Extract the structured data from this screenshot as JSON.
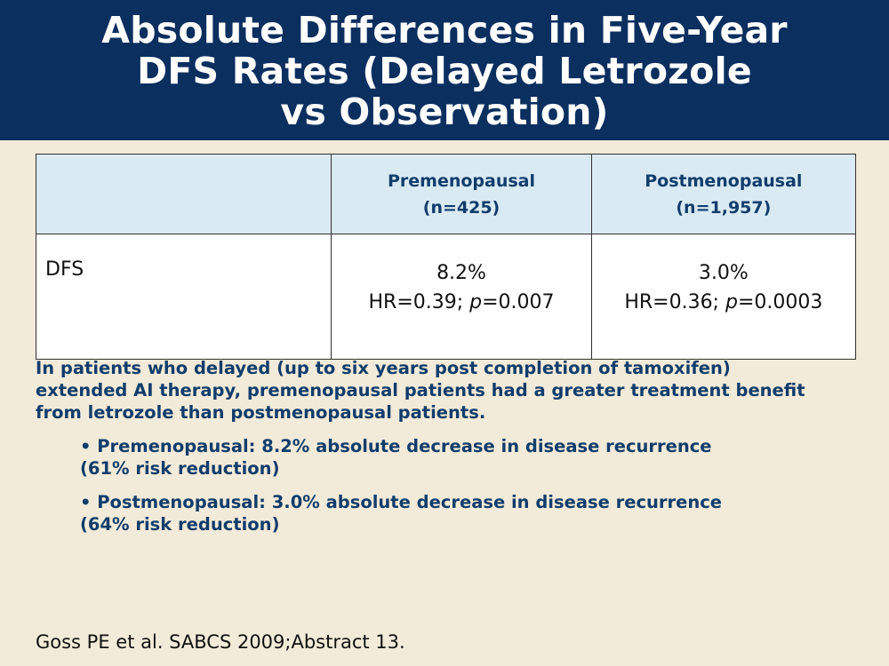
{
  "colors": {
    "header_background": "#0b2f5f",
    "slide_background": "#f3ebd9",
    "table_header_background": "#d9eaf3",
    "accent_text": "#123d6c",
    "body_text": "#111111"
  },
  "title": {
    "line1": "Absolute Differences in Five-Year",
    "line2": "DFS Rates (Delayed Letrozole",
    "line3": "vs Observation)"
  },
  "table": {
    "headers": [
      "",
      {
        "line1": "Premenopausal",
        "line2": "(n=425)"
      },
      {
        "line1": "Postmenopausal",
        "line2": "(n=1,957)"
      }
    ],
    "rows": [
      {
        "label": "DFS",
        "premenopausal": {
          "absolute_difference": "8.2%",
          "hr_label": "HR=0.39; ",
          "p_symbol": "p",
          "p_value": "=0.007"
        },
        "postmenopausal": {
          "absolute_difference": "3.0%",
          "hr_label": "HR=0.36; ",
          "p_symbol": "p",
          "p_value": "=0.0003"
        }
      }
    ]
  },
  "summary": {
    "line1": "In patients who delayed (up to six years post completion of tamoxifen)",
    "line2": "extended AI therapy, premenopausal patients had a greater treatment benefit",
    "line3": "from letrozole than postmenopausal patients."
  },
  "bullets": [
    {
      "line1": "• Premenopausal: 8.2% absolute decrease in disease recurrence",
      "line2": "(61% risk reduction)"
    },
    {
      "line1": "• Postmenopausal: 3.0% absolute decrease in disease recurrence",
      "line2": "(64% risk reduction)"
    }
  ],
  "citation": "Goss PE et al. SABCS 2009;Abstract 13."
}
